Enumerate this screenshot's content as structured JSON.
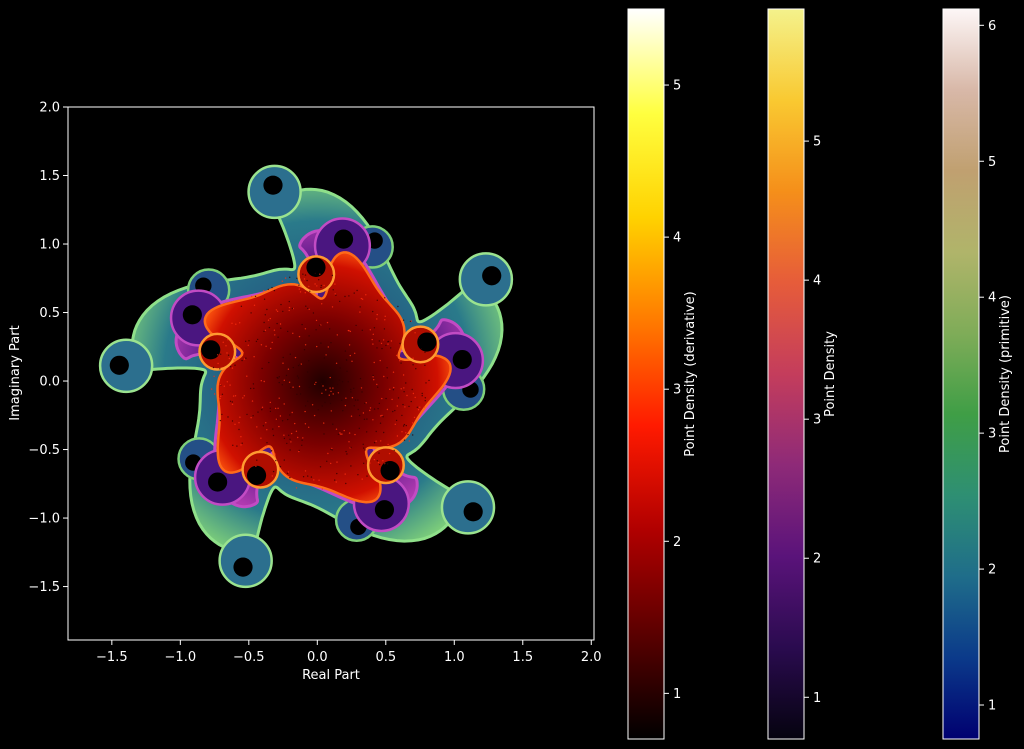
{
  "chart_data": [
    {
      "type": "heatmap",
      "title": "",
      "xlabel": "Real Part",
      "ylabel": "Imaginary Part",
      "xlim": [
        -1.82,
        2.02
      ],
      "ylim": [
        -1.89,
        2.0
      ],
      "xticks": [
        -1.5,
        -1.0,
        -0.5,
        0.0,
        0.5,
        1.0,
        1.5,
        2.0
      ],
      "yticks": [
        -1.5,
        -1.0,
        -0.5,
        0.0,
        0.5,
        1.0,
        1.5,
        2.0
      ],
      "xtick_labels": [
        "−1.5",
        "−1.0",
        "−0.5",
        "0.0",
        "0.5",
        "1.0",
        "1.5",
        "2.0"
      ],
      "ytick_labels": [
        "−1.5",
        "−1.0",
        "−0.5",
        "0.0",
        "0.5",
        "1.0",
        "1.5",
        "2.0"
      ],
      "background": "#000000",
      "grid": false,
      "series": [
        {
          "name": "Point Density (primitive)",
          "colormap": "gist_earth"
        },
        {
          "name": "Point Density",
          "colormap": "inferno/plasma"
        },
        {
          "name": "Point Density (derivative)",
          "colormap": "hot"
        }
      ]
    },
    {
      "type": "colorbar",
      "label": "Point Density (derivative)",
      "colormap": [
        "#000000",
        "#5a0000",
        "#b00000",
        "#ff1a00",
        "#ff7a00",
        "#ffd200",
        "#ffff40",
        "#ffffff"
      ],
      "range": [
        0.7,
        5.5
      ],
      "ticks": [
        1,
        2,
        3,
        4,
        5
      ],
      "tick_labels": [
        "1",
        "2",
        "3",
        "4",
        "5"
      ]
    },
    {
      "type": "colorbar",
      "label": "Point Density",
      "colormap": [
        "#05030f",
        "#2a0b4f",
        "#5a137a",
        "#8e2a78",
        "#c43d5c",
        "#e65c3a",
        "#f58f1a",
        "#f9c931",
        "#f4f28c"
      ],
      "range": [
        0.7,
        5.95
      ],
      "ticks": [
        1,
        2,
        3,
        4,
        5
      ],
      "tick_labels": [
        "1",
        "2",
        "3",
        "4",
        "5"
      ]
    },
    {
      "type": "colorbar",
      "label": "Point Density (primitive)",
      "colormap": [
        "#000070",
        "#0b3a8a",
        "#1f6d8a",
        "#2e8f73",
        "#3f9e46",
        "#7fac58",
        "#b0b46a",
        "#c0a070",
        "#d8b8a8",
        "#fdf6f6"
      ],
      "range": [
        0.75,
        6.12
      ],
      "ticks": [
        1,
        2,
        3,
        4,
        5,
        6
      ],
      "tick_labels": [
        "1",
        "2",
        "3",
        "4",
        "5",
        "6"
      ]
    }
  ]
}
